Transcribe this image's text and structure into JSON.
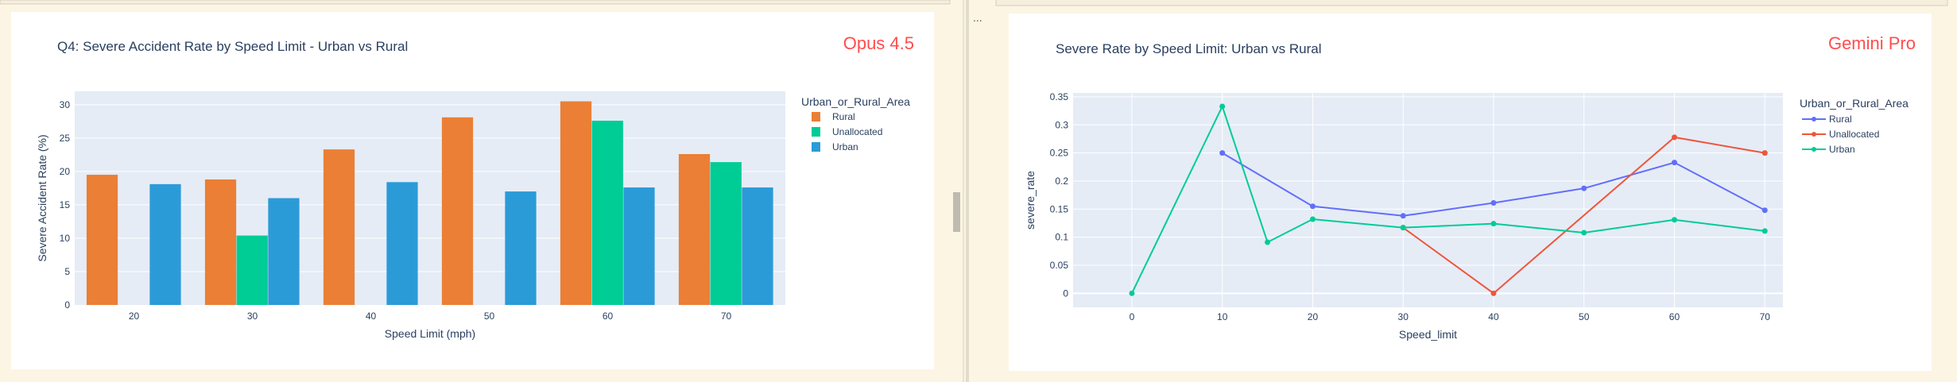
{
  "panel_left_tag": "Opus 4.5",
  "panel_right_tag": "Gemini Pro",
  "overflow_marker": "...",
  "colors": {
    "rural_bar": "#eb7f35",
    "unalloc_bar": "#00cc96",
    "urban_bar": "#2b9bd8",
    "rural_line": "#636efa",
    "unalloc_line": "#ef553b",
    "urban_line": "#00cc96",
    "tag": "#ff4d4d"
  },
  "chart_data": [
    {
      "type": "bar",
      "title": "Q4: Severe Accident Rate by Speed Limit - Urban vs Rural",
      "xlabel": "Speed Limit (mph)",
      "ylabel": "Severe Accident Rate (%)",
      "categories": [
        "20",
        "30",
        "40",
        "50",
        "60",
        "70"
      ],
      "ylim": [
        0,
        32
      ],
      "yticks": [
        0,
        5,
        10,
        15,
        20,
        25,
        30
      ],
      "legend_title": "Urban_or_Rural_Area",
      "legend_position": "right",
      "series": [
        {
          "name": "Rural",
          "values": [
            19.5,
            18.8,
            23.3,
            28.1,
            30.5,
            22.6
          ]
        },
        {
          "name": "Unallocated",
          "values": [
            null,
            10.4,
            null,
            null,
            27.6,
            21.4
          ]
        },
        {
          "name": "Urban",
          "values": [
            18.1,
            16.0,
            18.4,
            17.0,
            17.6,
            17.6
          ]
        }
      ]
    },
    {
      "type": "line",
      "title": "Severe Rate by Speed Limit: Urban vs Rural",
      "xlabel": "Speed_limit",
      "ylabel": "severe_rate",
      "xlim": [
        -6.5,
        72
      ],
      "ylim": [
        -0.025,
        0.357
      ],
      "xticks": [
        0,
        10,
        20,
        30,
        40,
        50,
        60,
        70
      ],
      "yticks": [
        0,
        0.05,
        0.1,
        0.15,
        0.2,
        0.25,
        0.3,
        0.35
      ],
      "ytick_labels": [
        "0",
        "0.05",
        "0.1",
        "0.15",
        "0.2",
        "0.25",
        "0.3",
        "0.35"
      ],
      "legend_title": "Urban_or_Rural_Area",
      "legend_position": "right",
      "series": [
        {
          "name": "Rural",
          "x": [
            10,
            20,
            30,
            40,
            50,
            60,
            70
          ],
          "y": [
            0.25,
            0.155,
            0.138,
            0.161,
            0.187,
            0.233,
            0.148
          ]
        },
        {
          "name": "Unallocated",
          "x": [
            30,
            40,
            60,
            70
          ],
          "y": [
            0.117,
            0,
            0.278,
            0.25
          ]
        },
        {
          "name": "Urban",
          "x": [
            0,
            10,
            15,
            20,
            30,
            40,
            50,
            60,
            70
          ],
          "y": [
            0,
            0.333,
            0.091,
            0.132,
            0.117,
            0.124,
            0.108,
            0.131,
            0.111
          ]
        }
      ]
    }
  ]
}
